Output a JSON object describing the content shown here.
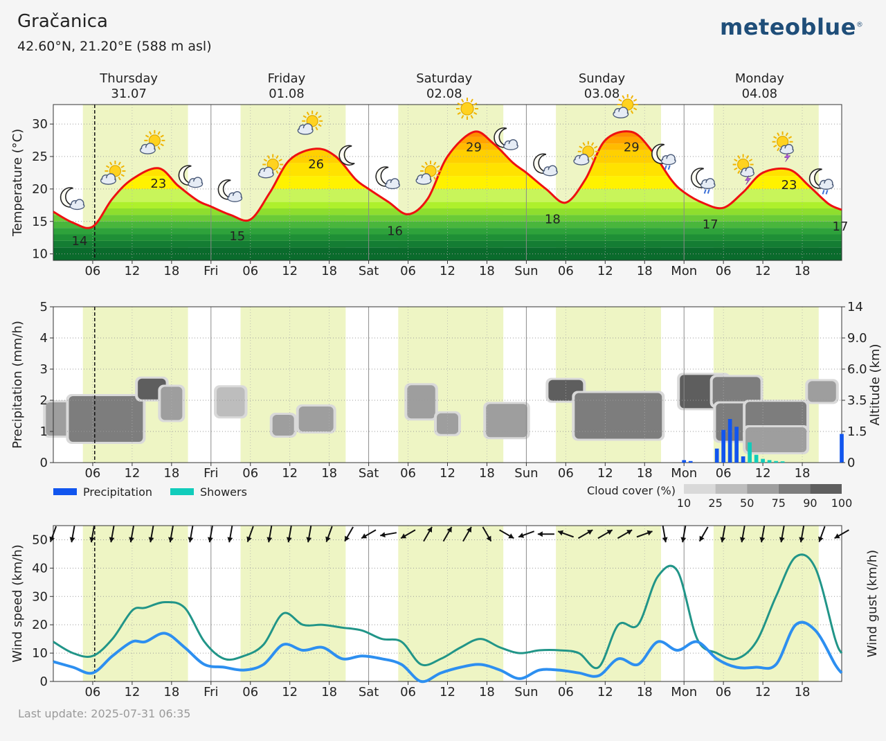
{
  "header": {
    "location": "Gračanica",
    "coordinates": "42.60°N, 21.20°E (588 m asl)",
    "brand": "meteoblue"
  },
  "footer": {
    "last_update": "Last update: 2025-07-31 06:35"
  },
  "colors": {
    "weekend": "#d62728",
    "daylight_band": "#eef5c4",
    "temperature_line": "#ee1111",
    "precipitation": "#1155ee",
    "showers": "#11ccbb",
    "wind_speed": "#2d8ff0",
    "wind_gust": "#219588"
  },
  "chart_data": [
    {
      "type": "line",
      "panel": "temperature",
      "days": [
        {
          "name": "Thursday",
          "date": "31.07",
          "weekend": false
        },
        {
          "name": "Friday",
          "date": "01.08",
          "weekend": false
        },
        {
          "name": "Saturday",
          "date": "02.08",
          "weekend": true
        },
        {
          "name": "Sunday",
          "date": "03.08",
          "weekend": true
        },
        {
          "name": "Monday",
          "date": "04.08",
          "weekend": false
        }
      ],
      "x_ticks": [
        "06",
        "12",
        "18",
        "Fri",
        "06",
        "12",
        "18",
        "Sat",
        "06",
        "12",
        "18",
        "Sun",
        "06",
        "12",
        "18",
        "Mon",
        "06",
        "12",
        "18"
      ],
      "x_tick_hours": [
        6,
        12,
        18,
        24,
        30,
        36,
        42,
        48,
        54,
        60,
        66,
        72,
        78,
        84,
        90,
        96,
        102,
        108,
        114
      ],
      "x_range_hours": [
        0,
        120
      ],
      "now_hour": 6.3,
      "daylight_hours": [
        [
          4.5,
          20.5
        ],
        [
          28.5,
          44.5
        ],
        [
          52.5,
          68.5
        ],
        [
          76.5,
          92.5
        ],
        [
          100.5,
          116.5
        ]
      ],
      "ylabel": "Temperature (°C)",
      "ylim": [
        9,
        33
      ],
      "y_ticks": [
        10,
        15,
        20,
        25,
        30
      ],
      "series": [
        {
          "hours": [
            0,
            3,
            6,
            9,
            12,
            16,
            19,
            22,
            24,
            27,
            30,
            33,
            36,
            40,
            43,
            46,
            48,
            51,
            54,
            57,
            60,
            64,
            67,
            70,
            72,
            75,
            78,
            81,
            84,
            88,
            91,
            94,
            96,
            99,
            102,
            105,
            108,
            112,
            115,
            118,
            120
          ],
          "temperature_c": [
            16.5,
            14.8,
            14.2,
            18.5,
            21.5,
            23.2,
            20.5,
            18.2,
            17.3,
            16,
            15.3,
            19.5,
            24.5,
            26.2,
            25,
            21.5,
            20,
            18,
            16.1,
            18.5,
            25,
            28.8,
            27,
            24,
            22.5,
            20,
            17.9,
            21.5,
            27.5,
            28.8,
            26,
            21.5,
            19.5,
            17.8,
            17.1,
            19.5,
            22.5,
            23,
            20.5,
            17.7,
            16.8
          ]
        }
      ],
      "labels": [
        {
          "hour": 4,
          "text": "14"
        },
        {
          "hour": 16,
          "text": "23"
        },
        {
          "hour": 28,
          "text": "15"
        },
        {
          "hour": 40,
          "text": "26"
        },
        {
          "hour": 52,
          "text": "16"
        },
        {
          "hour": 64,
          "text": "29"
        },
        {
          "hour": 76,
          "text": "18"
        },
        {
          "hour": 88,
          "text": "29"
        },
        {
          "hour": 100,
          "text": "17"
        },
        {
          "hour": 112,
          "text": "23"
        },
        {
          "hour": 120,
          "text": "17"
        }
      ],
      "icons": [
        {
          "hour": 3,
          "icon": "moon-cloud-icon"
        },
        {
          "hour": 9,
          "icon": "sun-cloud-icon"
        },
        {
          "hour": 15,
          "icon": "sun-cloud-icon"
        },
        {
          "hour": 21,
          "icon": "moon-cloud-icon"
        },
        {
          "hour": 27,
          "icon": "moon-cloud-icon"
        },
        {
          "hour": 33,
          "icon": "sun-cloud-icon"
        },
        {
          "hour": 39,
          "icon": "sun-cloud-icon"
        },
        {
          "hour": 45,
          "icon": "moon-icon"
        },
        {
          "hour": 51,
          "icon": "moon-cloud-icon"
        },
        {
          "hour": 57,
          "icon": "sun-cloud-icon"
        },
        {
          "hour": 63,
          "icon": "sun-icon"
        },
        {
          "hour": 69,
          "icon": "moon-cloud-icon"
        },
        {
          "hour": 75,
          "icon": "moon-cloud-icon"
        },
        {
          "hour": 81,
          "icon": "sun-cloud-icon"
        },
        {
          "hour": 87,
          "icon": "sun-cloud-icon"
        },
        {
          "hour": 93,
          "icon": "moon-rain-icon"
        },
        {
          "hour": 99,
          "icon": "moon-rain-icon"
        },
        {
          "hour": 105,
          "icon": "sun-thunder-icon"
        },
        {
          "hour": 111,
          "icon": "sun-thunder-icon"
        },
        {
          "hour": 117,
          "icon": "moon-rain-icon"
        }
      ]
    },
    {
      "type": "bar",
      "panel": "precipitation",
      "ylabel": "Precipitation (mm/h)",
      "ylim": [
        0,
        5
      ],
      "y_ticks": [
        0,
        1,
        2,
        3,
        4,
        5
      ],
      "y2label": "Altitude (km)",
      "y2_ticks": [
        "0",
        "1.5",
        "3.5",
        "6.0",
        "9.0",
        "14"
      ],
      "series": [
        {
          "name": "Precipitation",
          "hours": [
            96,
            97,
            101,
            102,
            103,
            104,
            105,
            120
          ],
          "values": [
            0.08,
            0.05,
            0.45,
            1.05,
            1.4,
            1.15,
            0.2,
            0.92
          ]
        },
        {
          "name": "Showers",
          "hours": [
            106,
            107,
            108,
            109,
            110,
            111
          ],
          "values": [
            0.65,
            0.25,
            0.12,
            0.08,
            0.05,
            0.04
          ]
        }
      ],
      "cloud_cover_legend": {
        "title": "Cloud cover (%)",
        "ticks": [
          "10",
          "25",
          "50",
          "75",
          "90",
          "100"
        ],
        "colors": [
          "#d9d9d9",
          "#bdbdbd",
          "#9e9e9e",
          "#7d7d7d",
          "#5e5e5e"
        ]
      },
      "cloud_cover": [
        {
          "hour": 2,
          "km": 2.3,
          "w": 5,
          "h": 0.6,
          "cover": 50
        },
        {
          "hour": 8,
          "km": 2.3,
          "w": 10,
          "h": 0.9,
          "cover": 75
        },
        {
          "hour": 15,
          "km": 4.4,
          "w": 3,
          "h": 0.3,
          "cover": 90
        },
        {
          "hour": 18,
          "km": 3.3,
          "w": 2,
          "h": 0.6,
          "cover": 50
        },
        {
          "hour": 27,
          "km": 3.4,
          "w": 3,
          "h": 0.5,
          "cover": 25
        },
        {
          "hour": 35,
          "km": 1.9,
          "w": 2,
          "h": 0.3,
          "cover": 50
        },
        {
          "hour": 40,
          "km": 2.3,
          "w": 4,
          "h": 0.4,
          "cover": 50
        },
        {
          "hour": 56,
          "km": 3.4,
          "w": 3,
          "h": 0.6,
          "cover": 50
        },
        {
          "hour": 60,
          "km": 2.0,
          "w": 2,
          "h": 0.3,
          "cover": 50
        },
        {
          "hour": 69,
          "km": 2.2,
          "w": 5,
          "h": 0.6,
          "cover": 50
        },
        {
          "hour": 78,
          "km": 4.3,
          "w": 4,
          "h": 0.3,
          "cover": 90
        },
        {
          "hour": 86,
          "km": 2.5,
          "w": 12,
          "h": 0.9,
          "cover": 75
        },
        {
          "hour": 99,
          "km": 4.2,
          "w": 6,
          "h": 0.6,
          "cover": 90
        },
        {
          "hour": 104,
          "km": 4.2,
          "w": 6,
          "h": 0.5,
          "cover": 75
        },
        {
          "hour": 104,
          "km": 2.1,
          "w": 5,
          "h": 0.7,
          "cover": 75
        },
        {
          "hour": 110,
          "km": 2.2,
          "w": 8,
          "h": 0.7,
          "cover": 75
        },
        {
          "hour": 110,
          "km": 1.1,
          "w": 8,
          "h": 0.4,
          "cover": 50
        },
        {
          "hour": 117,
          "km": 4.2,
          "w": 3,
          "h": 0.3,
          "cover": 50
        }
      ]
    },
    {
      "type": "line",
      "panel": "wind",
      "ylabel": "Wind speed (km/h)",
      "y2label": "Wind gust (km/h)",
      "ylim": [
        0,
        55
      ],
      "y_ticks": [
        0,
        10,
        20,
        30,
        40,
        50
      ],
      "series": [
        {
          "name": "Wind speed",
          "hours": [
            0,
            3,
            6,
            9,
            12,
            14,
            17,
            20,
            23,
            26,
            29,
            32,
            35,
            38,
            41,
            44,
            47,
            50,
            53,
            56,
            59,
            62,
            65,
            68,
            71,
            74,
            77,
            80,
            83,
            86,
            89,
            92,
            95,
            98,
            101,
            104,
            107,
            110,
            113,
            116,
            119,
            120
          ],
          "values": [
            7,
            5,
            3,
            9,
            14,
            14,
            17,
            12,
            6,
            5,
            4,
            6,
            13,
            11,
            12,
            8,
            9,
            8,
            6,
            0,
            3,
            5,
            6,
            4,
            1,
            4,
            4,
            3,
            2,
            8,
            6,
            14,
            11,
            14,
            8,
            5,
            5,
            6,
            20,
            18,
            6,
            3
          ]
        },
        {
          "name": "Wind gust",
          "hours": [
            0,
            3,
            6,
            9,
            12,
            14,
            17,
            20,
            23,
            26,
            29,
            32,
            35,
            38,
            41,
            44,
            47,
            50,
            53,
            56,
            59,
            62,
            65,
            68,
            71,
            74,
            77,
            80,
            83,
            86,
            89,
            92,
            95,
            98,
            101,
            104,
            107,
            110,
            113,
            116,
            119,
            120
          ],
          "values": [
            14,
            10,
            9,
            15,
            25,
            26,
            28,
            26,
            14,
            8,
            9,
            13,
            24,
            20,
            20,
            19,
            18,
            15,
            14,
            6,
            8,
            12,
            15,
            12,
            10,
            11,
            11,
            10,
            5,
            20,
            20,
            37,
            39,
            15,
            10,
            8,
            14,
            30,
            44,
            40,
            15,
            10
          ]
        }
      ],
      "wind_arrows": {
        "hours": [
          0,
          3,
          6,
          9,
          12,
          15,
          18,
          21,
          24,
          27,
          30,
          33,
          36,
          39,
          42,
          45,
          48,
          51,
          54,
          57,
          60,
          63,
          66,
          69,
          72,
          75,
          78,
          81,
          84,
          87,
          90,
          93,
          96,
          99,
          102,
          105,
          108,
          111,
          114,
          117,
          120
        ],
        "direction_from_deg": [
          20,
          10,
          10,
          10,
          10,
          10,
          10,
          10,
          10,
          10,
          20,
          10,
          10,
          10,
          20,
          30,
          60,
          80,
          60,
          210,
          210,
          210,
          330,
          300,
          70,
          90,
          110,
          240,
          240,
          240,
          250,
          350,
          10,
          30,
          10,
          10,
          10,
          10,
          10,
          20,
          60
        ]
      }
    }
  ]
}
